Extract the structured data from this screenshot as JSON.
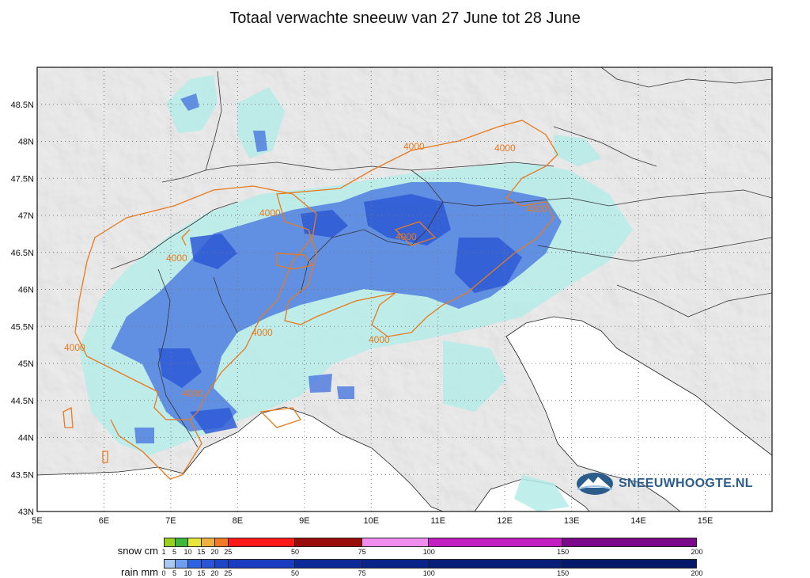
{
  "title": "Totaal verwachte sneeuw van 27 June tot 28 June",
  "axes": {
    "lon_ticks": [
      "5E",
      "6E",
      "7E",
      "8E",
      "9E",
      "10E",
      "11E",
      "12E",
      "13E",
      "14E",
      "15E"
    ],
    "lat_ticks": [
      "43N",
      "43.5N",
      "44N",
      "44.5N",
      "45N",
      "45.5N",
      "46N",
      "46.5N",
      "47N",
      "47.5N",
      "48N",
      "48.5N"
    ],
    "lon_range": [
      5,
      16
    ],
    "lat_range": [
      43,
      49
    ],
    "grid": "dotted"
  },
  "contour_label": "4000",
  "brand": {
    "name": "SNEEUWHOOGTE.NL",
    "icon": "mountain-logo-icon"
  },
  "legend": {
    "snow_label": "snow cm",
    "rain_label": "rain mm",
    "snow_ticks": [
      "1",
      "5",
      "10",
      "15",
      "20",
      "25",
      "50",
      "75",
      "100",
      "150",
      "200"
    ],
    "rain_ticks": [
      "0",
      "5",
      "10",
      "15",
      "20",
      "25",
      "50",
      "75",
      "100",
      "150",
      "200"
    ],
    "snow_colors": [
      "#9bd11c",
      "#3cb83c",
      "#e8e83a",
      "#f0b040",
      "#f07a28",
      "#ff1a1a",
      "#9a0c0c",
      "#f08ef0",
      "#c21ec2",
      "#7a0a8a"
    ],
    "rain_colors": [
      "#a8c8f0",
      "#6e9ef0",
      "#2d62e0",
      "#2a55d8",
      "#1e44c8",
      "#1a3cc0",
      "#0e2a98",
      "#0a2488",
      "#061e78",
      "#04196a"
    ]
  },
  "colors": {
    "contour": "#e87a1e",
    "precip_light": "#b6ece8",
    "precip_medium": "#4a78e0",
    "precip_strong": "#2e5ad6"
  }
}
